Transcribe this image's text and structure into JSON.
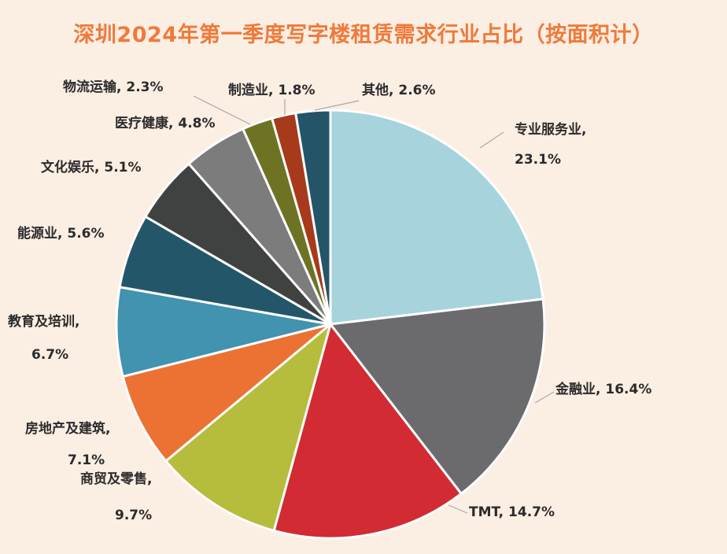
{
  "chart_data": {
    "type": "pie",
    "title": "深圳2024年第一季度写字楼租赁需求行业占比（按面积计）",
    "slices": [
      {
        "label": "专业服务业",
        "value": 23.1,
        "text": "23.1%",
        "color": "#a7d3dd"
      },
      {
        "label": "金融业",
        "value": 16.4,
        "text": "16.4%",
        "color": "#6b6b6d"
      },
      {
        "label": "TMT",
        "value": 14.7,
        "text": "14.7%",
        "color": "#d22b33"
      },
      {
        "label": "商贸及零售",
        "value": 9.7,
        "text": "9.7%",
        "color": "#b6bc3c"
      },
      {
        "label": "房地产及建筑",
        "value": 7.1,
        "text": "7.1%",
        "color": "#ec7233"
      },
      {
        "label": "教育及培训",
        "value": 6.7,
        "text": "6.7%",
        "color": "#4193b0"
      },
      {
        "label": "能源业",
        "value": 5.6,
        "text": "5.6%",
        "color": "#24566a"
      },
      {
        "label": "文化娱乐",
        "value": 5.1,
        "text": "5.1%",
        "color": "#404242"
      },
      {
        "label": "医疗健康",
        "value": 4.8,
        "text": "4.8%",
        "color": "#7c7c7c"
      },
      {
        "label": "物流运输",
        "value": 2.3,
        "text": "2.3%",
        "color": "#6d7322"
      },
      {
        "label": "制造业",
        "value": 1.8,
        "text": "1.8%",
        "color": "#a63a1a"
      },
      {
        "label": "其他",
        "value": 2.6,
        "text": "2.6%",
        "color": "#245468"
      }
    ]
  }
}
